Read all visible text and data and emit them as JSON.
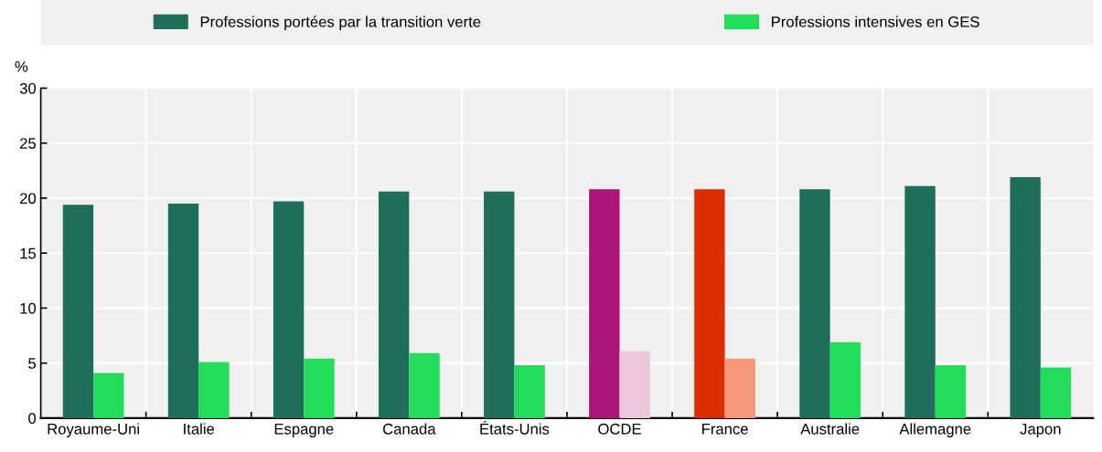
{
  "chart_data": {
    "type": "bar",
    "ylabel": "%",
    "categories": [
      "Royaume-Uni",
      "Italie",
      "Espagne",
      "Canada",
      "États-Unis",
      "OCDE",
      "France",
      "Australie",
      "Allemagne",
      "Japon"
    ],
    "series": [
      {
        "name": "Professions portées par la transition verte",
        "color": "#1f6e5a",
        "colors": [
          "#1f6e5a",
          "#1f6e5a",
          "#1f6e5a",
          "#1f6e5a",
          "#1f6e5a",
          "#aa1577",
          "#dd2e00",
          "#1f6e5a",
          "#1f6e5a",
          "#1f6e5a"
        ],
        "values": [
          19.4,
          19.5,
          19.7,
          20.6,
          20.6,
          20.8,
          20.8,
          20.8,
          21.1,
          21.9
        ]
      },
      {
        "name": "Professions intensives en GES",
        "color": "#22dd5a",
        "colors": [
          "#22dd5a",
          "#22dd5a",
          "#22dd5a",
          "#22dd5a",
          "#22dd5a",
          "#ecc8dc",
          "#f5977a",
          "#22dd5a",
          "#22dd5a",
          "#22dd5a"
        ],
        "values": [
          4.1,
          5.1,
          5.4,
          5.9,
          4.8,
          6.1,
          5.4,
          6.9,
          4.8,
          4.6
        ]
      }
    ],
    "ylim": [
      0,
      30
    ],
    "yticks": [
      0,
      5,
      10,
      15,
      20,
      25,
      30
    ],
    "grid": true,
    "legend": "top"
  }
}
